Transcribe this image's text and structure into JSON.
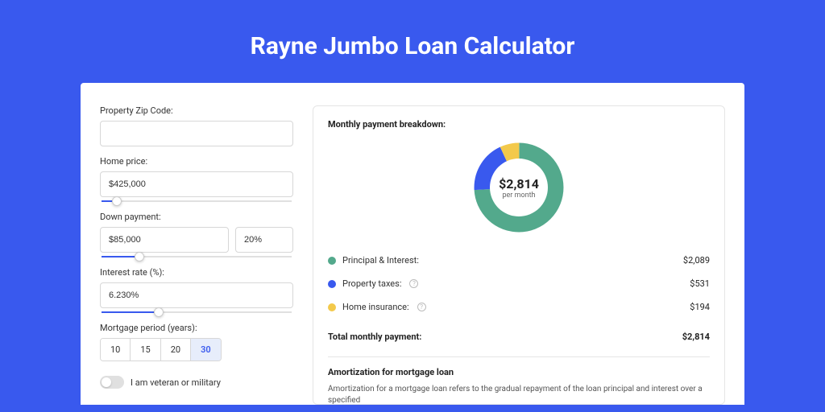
{
  "colors": {
    "page_bg": "#3959ee",
    "card_bg": "#ffffff",
    "border": "#d7d7d7",
    "text": "#333333",
    "accent": "#3959ee"
  },
  "title": "Rayne Jumbo Loan Calculator",
  "form": {
    "zip": {
      "label": "Property Zip Code:",
      "value": ""
    },
    "home_price": {
      "label": "Home price:",
      "value": "$425,000",
      "slider_pct": 8
    },
    "down_payment": {
      "label": "Down payment:",
      "value": "$85,000",
      "pct": "20%",
      "slider_pct": 20
    },
    "interest_rate": {
      "label": "Interest rate (%):",
      "value": "6.230%",
      "slider_pct": 30
    },
    "mortgage_period": {
      "label": "Mortgage period (years):",
      "options": [
        "10",
        "15",
        "20",
        "30"
      ],
      "selected": "30"
    },
    "veteran": {
      "label": "I am veteran or military",
      "checked": false
    }
  },
  "breakdown": {
    "title": "Monthly payment breakdown:",
    "donut": {
      "amount": "$2,814",
      "sub": "per month",
      "slices": [
        {
          "label": "Principal & Interest:",
          "value": "$2,089",
          "color": "#53a98c",
          "pct": 74
        },
        {
          "label": "Property taxes:",
          "value": "$531",
          "color": "#3959ee",
          "pct": 19,
          "info": true
        },
        {
          "label": "Home insurance:",
          "value": "$194",
          "color": "#f3c94b",
          "pct": 7,
          "info": true
        }
      ]
    },
    "total": {
      "label": "Total monthly payment:",
      "value": "$2,814"
    }
  },
  "amortization": {
    "title": "Amortization for mortgage loan",
    "text": "Amortization for a mortgage loan refers to the gradual repayment of the loan principal and interest over a specified"
  }
}
